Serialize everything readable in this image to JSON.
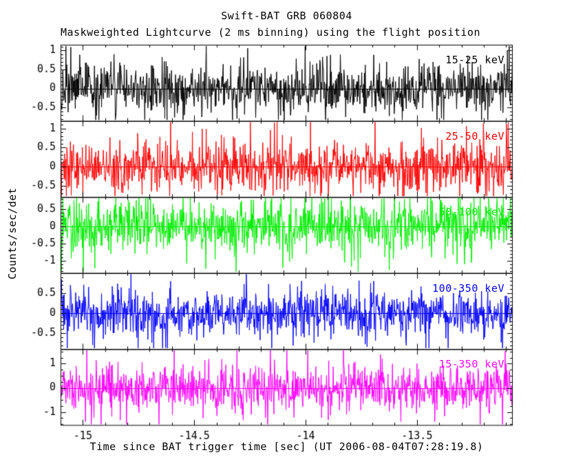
{
  "page": {
    "title": "Swift-BAT GRB 060804",
    "subtitle": "Maskweighted Lightcurve (2 ms binning) using the flight position",
    "xlabel": "Time since BAT trigger time [sec] (UT 2006-08-04T07:28:19.8)",
    "ylabel": "Counts/sec/det"
  },
  "chart_data": {
    "type": "line",
    "title": "Swift-BAT GRB 060804",
    "subtitle": "Maskweighted Lightcurve (2 ms binning) using the flight position",
    "xlabel": "Time since BAT trigger time [sec] (UT 2006-08-04T07:28:19.8)",
    "ylabel": "Counts/sec/det",
    "background": "#ffffff",
    "frame_color": "#000000",
    "x_range": [
      -15.1,
      -13.07
    ],
    "x_major_ticks": [
      -15,
      -14.5,
      -14,
      -13.5
    ],
    "x_minor_step": 0.1,
    "bin_seconds": 0.002,
    "legend_position": "inside-top-right-per-panel",
    "grid": false,
    "panels": [
      {
        "label": "15-25 keV",
        "color": "#000000",
        "ylim": [
          -0.85,
          1.15
        ],
        "yticks": [
          1,
          0.5,
          0,
          -0.5
        ],
        "y_minor_step": 0.1,
        "noise_sigma": 0.3,
        "mean": 0
      },
      {
        "label": "25-50 keV",
        "color": "#ff0000",
        "ylim": [
          -0.8,
          1.2
        ],
        "yticks": [
          1,
          0.5,
          0,
          -0.5
        ],
        "y_minor_step": 0.1,
        "noise_sigma": 0.3,
        "mean": 0
      },
      {
        "label": "50-100 keV",
        "color": "#00ee00",
        "ylim": [
          -1.35,
          0.85
        ],
        "yticks": [
          0.5,
          0,
          -0.5,
          -1
        ],
        "y_minor_step": 0.1,
        "noise_sigma": 0.35,
        "mean": 0
      },
      {
        "label": "100-350 keV",
        "color": "#0000ff",
        "ylim": [
          -0.9,
          1.0
        ],
        "yticks": [
          0.5,
          0,
          -0.5
        ],
        "y_minor_step": 0.1,
        "noise_sigma": 0.26,
        "mean": 0
      },
      {
        "label": "15-350 keV",
        "color": "#ff00ff",
        "ylim": [
          -1.55,
          1.6
        ],
        "yticks": [
          1,
          0,
          -1
        ],
        "y_minor_step": 0.25,
        "noise_sigma": 0.45,
        "mean": 0
      }
    ]
  }
}
